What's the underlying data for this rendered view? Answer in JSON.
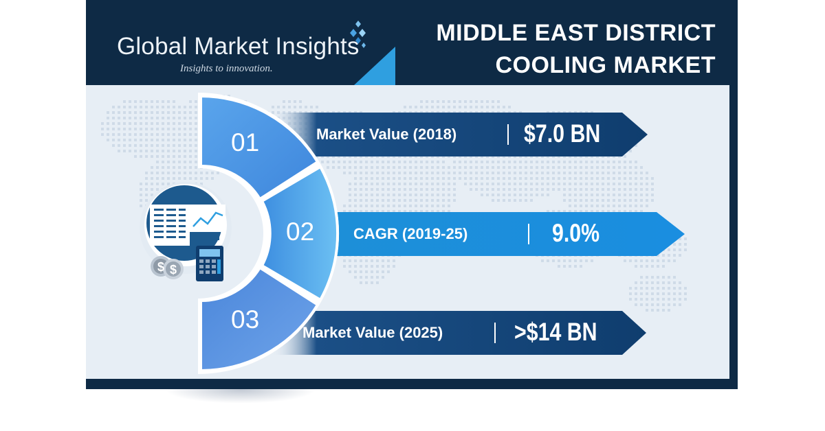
{
  "brand": {
    "name": "Global Market Insights",
    "tagline_plain": "Insights to",
    "tagline_italic": "innovation."
  },
  "title": {
    "line1": "MIDDLE EAST DISTRICT",
    "line2": "COOLING MARKET"
  },
  "stats": [
    {
      "number": "01",
      "label": "Market Value (2018)",
      "value": "$7.0 BN"
    },
    {
      "number": "02",
      "label": "CAGR (2019-25)",
      "value": "9.0%"
    },
    {
      "number": "03",
      "label": "Market Value (2025)",
      "value": ">$14 BN"
    }
  ],
  "icons": {
    "report": "report-chart-icon",
    "coins": "dollar-coins-icon",
    "calculator": "calculator-icon",
    "logo": "diamond-logo-icon"
  },
  "colors": {
    "navy": "#0e2a45",
    "accent_blue": "#2f9fe0",
    "segment_light": "#6fb6ef",
    "segment_mid": "#4f96e6",
    "background": "#e7eef5"
  }
}
